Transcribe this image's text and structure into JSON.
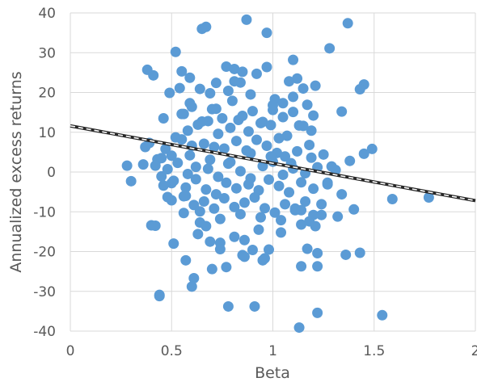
{
  "chart_data": {
    "type": "scatter",
    "title": "",
    "xlabel": "Beta",
    "ylabel": "Annualized excess returns",
    "xlim": [
      0,
      2
    ],
    "ylim": [
      -40,
      40
    ],
    "x_ticks": [
      0,
      0.5,
      1,
      1.5,
      2
    ],
    "x_tick_labels": [
      "0",
      "0.5",
      "1",
      "1.5",
      "2"
    ],
    "y_ticks": [
      -40,
      -30,
      -20,
      -10,
      0,
      10,
      20,
      30,
      40
    ],
    "y_tick_labels": [
      "-40",
      "-30",
      "-20",
      "-10",
      "0",
      "10",
      "20",
      "30",
      "40"
    ],
    "grid": {
      "horizontal": true,
      "vertical": true
    },
    "legend": "none",
    "colors": {
      "points": "#5b9bd5",
      "trendline": "#262626",
      "grid": "#d9d9d9",
      "text": "#595959"
    },
    "trendline": {
      "type": "linear",
      "style": "dashed",
      "x": [
        0,
        2
      ],
      "y": [
        11.6,
        -7.2
      ]
    },
    "series": [
      {
        "x": [
          0.87,
          0.97,
          1.37,
          0.52,
          0.65,
          0.67,
          1.28,
          0.77,
          0.81,
          0.85,
          0.84,
          0.92,
          0.97,
          0.38,
          1.45,
          0.55,
          0.41,
          0.49,
          0.59,
          0.64,
          0.81,
          0.72,
          1.1,
          1.12,
          1.15,
          1.08,
          0.46,
          1.21,
          1.43,
          0.54,
          0.69,
          0.59,
          0.72,
          0.78,
          0.89,
          1.01,
          0.56,
          1.0,
          1.05,
          1.1,
          1.17,
          1.34,
          0.57,
          0.48,
          1.14,
          1.22,
          0.4,
          0.51,
          0.61,
          0.67,
          0.74,
          0.86,
          0.93,
          1.04,
          1.2,
          1.24,
          0.44,
          0.37,
          1.49,
          1.45,
          1.38,
          0.28,
          0.3,
          0.36,
          1.31,
          1.27,
          1.59,
          1.77,
          0.5,
          0.45,
          0.57,
          0.64,
          1.18,
          1.34,
          0.42,
          0.63,
          1.14,
          1.22,
          0.78,
          0.85,
          0.91,
          0.98,
          0.74,
          0.56,
          0.7,
          0.96,
          1.11,
          1.17,
          0.6,
          0.81,
          0.86,
          1.22,
          1.43,
          1.36,
          0.95,
          0.69,
          0.44,
          0.77,
          0.9,
          1.21,
          1.54,
          1.13,
          0.43,
          0.47,
          0.52,
          0.58,
          0.63,
          0.68,
          0.73,
          0.79,
          0.83,
          0.88,
          0.94,
          0.99,
          1.03,
          1.07,
          1.13,
          1.19,
          0.39,
          0.45,
          0.5,
          0.55,
          0.6,
          0.66,
          0.71,
          0.76,
          0.82,
          0.87,
          0.92,
          0.97,
          1.02,
          1.06,
          1.12,
          1.18,
          1.25,
          0.42,
          0.48,
          0.53,
          0.58,
          0.62,
          0.68,
          0.73,
          0.78,
          0.84,
          0.89,
          0.95,
          1.0,
          1.05,
          1.1,
          1.16,
          1.22,
          0.46,
          0.51,
          0.57,
          0.62,
          0.67,
          0.72,
          0.77,
          0.82,
          0.88,
          0.93,
          0.98,
          1.03,
          1.08,
          1.14,
          1.2,
          1.27,
          0.5,
          0.56,
          0.61,
          0.66,
          0.71,
          0.76,
          0.81,
          0.86,
          0.91,
          0.96,
          1.01,
          1.06,
          1.11,
          1.16,
          0.55,
          0.6,
          0.65,
          0.7,
          0.75,
          0.8,
          0.85,
          0.9,
          0.95,
          1.0,
          1.05,
          1.1,
          1.15,
          1.2,
          0.59,
          0.69,
          0.79,
          0.89,
          0.99,
          1.09,
          1.19,
          1.29,
          0.64,
          0.74,
          0.84,
          0.94,
          1.04,
          1.14,
          1.24,
          1.32,
          1.4
        ],
        "y": [
          38.3,
          35.0,
          37.4,
          30.2,
          36.0,
          36.5,
          31.1,
          26.5,
          25.9,
          25.2,
          22.5,
          24.7,
          26.4,
          25.7,
          22.0,
          25.3,
          24.3,
          19.9,
          23.7,
          20.9,
          22.8,
          22.4,
          28.2,
          23.5,
          21.0,
          22.8,
          13.5,
          21.7,
          20.8,
          21.1,
          19.8,
          17.3,
          15.9,
          20.4,
          19.5,
          18.3,
          14.6,
          15.6,
          17.3,
          18.9,
          16.9,
          15.2,
          -22.2,
          -6.3,
          -13.2,
          -20.4,
          -13.4,
          -18.0,
          -26.7,
          -13.6,
          -17.8,
          -17.1,
          -14.5,
          -15.2,
          -10.8,
          -8.1,
          -30.9,
          6.3,
          5.8,
          4.6,
          2.8,
          1.6,
          -2.3,
          1.9,
          0.5,
          -2.7,
          -6.8,
          -6.4,
          -2.8,
          -1.1,
          -6.0,
          -12.7,
          -12.4,
          -5.6,
          -13.5,
          -15.6,
          -23.7,
          -23.7,
          -33.8,
          -20.9,
          -33.8,
          -19.5,
          -19.4,
          -10.3,
          -24.4,
          -21.7,
          -9.2,
          -19.3,
          -28.8,
          -16.3,
          -21.3,
          -35.4,
          -20.3,
          -20.8,
          -22.2,
          -17.5,
          -31.2,
          -23.9,
          -19.6,
          -13.6,
          -36.0,
          -39.1,
          3.2,
          5.8,
          8.7,
          10.4,
          11.9,
          12.8,
          9.6,
          11.1,
          13.1,
          10.2,
          12.3,
          11.8,
          8.5,
          9.1,
          11.7,
          10.4,
          7.3,
          3.5,
          4.1,
          8.2,
          6.6,
          7.1,
          6.3,
          5.9,
          7.8,
          5.4,
          8.1,
          6.6,
          4.8,
          3.9,
          5.2,
          6.8,
          4.4,
          1.6,
          0.7,
          2.3,
          -0.5,
          1.3,
          0.8,
          -1.2,
          2.1,
          0.2,
          -1.6,
          1.5,
          2.6,
          -0.7,
          0.9,
          -0.3,
          1.2,
          -3.4,
          -2.2,
          -3.9,
          -1.8,
          -4.4,
          -5.6,
          -2.7,
          -4.1,
          -3.1,
          -4.6,
          -1.9,
          -3.5,
          -5.1,
          -2.6,
          -4.2,
          -3.1,
          -7.1,
          -6.1,
          -8.3,
          -7.4,
          -9.2,
          -6.6,
          -8.8,
          -7.7,
          -6.4,
          -9.1,
          -10.2,
          -8.1,
          -9.6,
          -7.4,
          14.6,
          16.4,
          12.7,
          15.8,
          13.5,
          17.9,
          14.1,
          15.3,
          12.6,
          16.8,
          13.8,
          15.1,
          11.6,
          14.2,
          4.2,
          3.1,
          2.5,
          4.7,
          3.9,
          2.2,
          3.6,
          1.4,
          -9.9,
          -11.8,
          -10.6,
          -11.4,
          -12.1,
          -9.6,
          -10.8,
          -11.2,
          -9.4
        ]
      }
    ]
  }
}
